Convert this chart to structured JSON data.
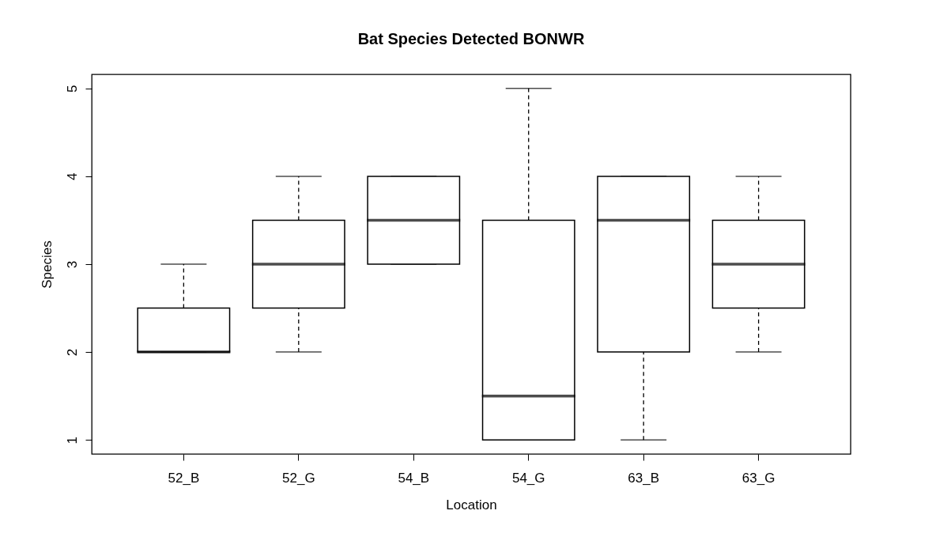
{
  "chart_data": {
    "type": "box",
    "title": "Bat Species Detected BONWR",
    "xlabel": "Location",
    "ylabel": "Species",
    "categories": [
      "52_B",
      "52_G",
      "54_B",
      "54_G",
      "63_B",
      "63_G"
    ],
    "boxes": [
      {
        "low": 2,
        "q1": 2,
        "median": 2,
        "q3": 2.5,
        "high": 3
      },
      {
        "low": 2,
        "q1": 2.5,
        "median": 3,
        "q3": 3.5,
        "high": 4
      },
      {
        "low": 3,
        "q1": 3,
        "median": 3.5,
        "q3": 4,
        "high": 4
      },
      {
        "low": 1,
        "q1": 1,
        "median": 1.5,
        "q3": 3.5,
        "high": 5
      },
      {
        "low": 1,
        "q1": 2,
        "median": 3.5,
        "q3": 4,
        "high": 4
      },
      {
        "low": 2,
        "q1": 2.5,
        "median": 3,
        "q3": 3.5,
        "high": 4
      }
    ],
    "ylim": [
      0.84,
      5.16
    ],
    "yticks": [
      1,
      2,
      3,
      4,
      5
    ],
    "grid": false
  }
}
